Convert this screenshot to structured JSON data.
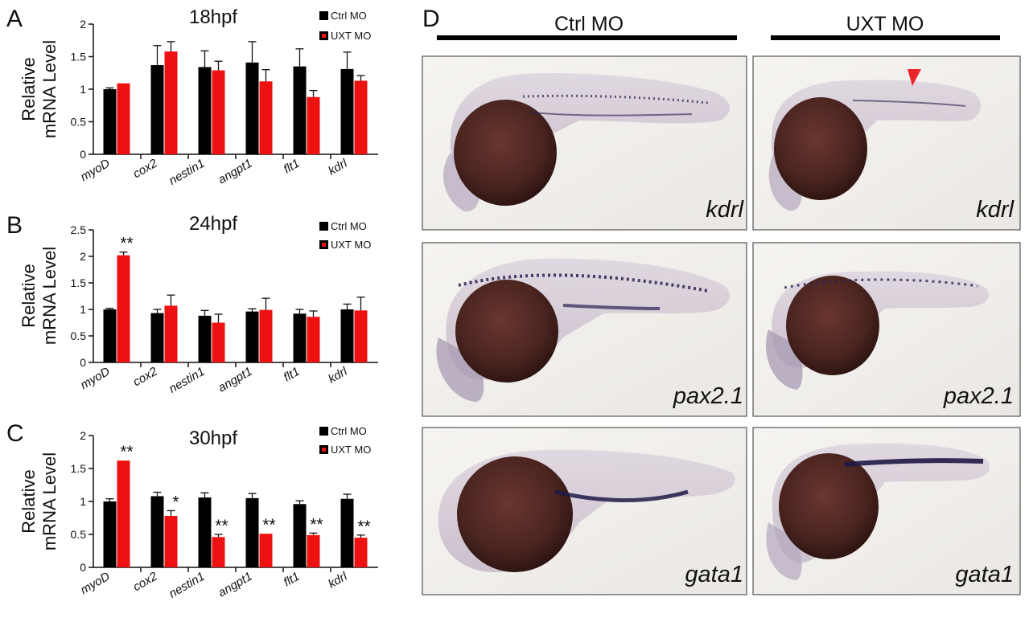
{
  "chart_data": [
    {
      "type": "bar",
      "panel": "A",
      "title": "18hpf",
      "ylabel_line1": "Relative",
      "ylabel_line2": "mRNA Level",
      "categories": [
        "myoD",
        "cox2",
        "nestin1",
        "angpt1",
        "flt1",
        "kdrl"
      ],
      "yticks": [
        "0",
        "0.5",
        "1",
        "1.5",
        "2"
      ],
      "ylim": [
        0,
        2
      ],
      "series": [
        {
          "name": "Ctrl MO",
          "color": "#000000",
          "values": [
            1.0,
            1.37,
            1.34,
            1.41,
            1.35,
            1.31
          ],
          "errors": [
            0.02,
            0.3,
            0.25,
            0.32,
            0.27,
            0.26
          ]
        },
        {
          "name": "UXT MO",
          "color": "#ee1111",
          "values": [
            1.09,
            1.58,
            1.29,
            1.12,
            0.88,
            1.13
          ],
          "errors": [
            0.0,
            0.15,
            0.14,
            0.18,
            0.1,
            0.08
          ]
        }
      ],
      "significance": []
    },
    {
      "type": "bar",
      "panel": "B",
      "title": "24hpf",
      "ylabel_line1": "Relative",
      "ylabel_line2": "mRNA Level",
      "categories": [
        "myoD",
        "cox2",
        "nestin1",
        "angpt1",
        "flt1",
        "kdrl"
      ],
      "yticks": [
        "0",
        "0.5",
        "1",
        "1.5",
        "2",
        "2.5"
      ],
      "ylim": [
        0,
        2.5
      ],
      "series": [
        {
          "name": "Ctrl MO",
          "color": "#000000",
          "values": [
            1.0,
            0.93,
            0.88,
            0.96,
            0.92,
            1.0
          ],
          "errors": [
            0.02,
            0.07,
            0.1,
            0.05,
            0.08,
            0.1
          ]
        },
        {
          "name": "UXT MO",
          "color": "#ee1111",
          "values": [
            2.02,
            1.07,
            0.75,
            0.99,
            0.86,
            0.98
          ],
          "errors": [
            0.06,
            0.2,
            0.16,
            0.22,
            0.11,
            0.25
          ]
        }
      ],
      "significance": [
        {
          "category": 0,
          "series": 1,
          "text": "**"
        }
      ]
    },
    {
      "type": "bar",
      "panel": "C",
      "title": "30hpf",
      "ylabel_line1": "Relative",
      "ylabel_line2": "mRNA Level",
      "categories": [
        "myoD",
        "cox2",
        "nestin1",
        "angpt1",
        "flt1",
        "kdrl"
      ],
      "yticks": [
        "0",
        "0.5",
        "1",
        "1.5",
        "2"
      ],
      "ylim": [
        0,
        2
      ],
      "series": [
        {
          "name": "Ctrl MO",
          "color": "#000000",
          "values": [
            1.0,
            1.08,
            1.06,
            1.05,
            0.96,
            1.04
          ],
          "errors": [
            0.04,
            0.06,
            0.07,
            0.07,
            0.05,
            0.07
          ]
        },
        {
          "name": "UXT MO",
          "color": "#ee1111",
          "values": [
            1.62,
            0.78,
            0.46,
            0.51,
            0.49,
            0.45
          ],
          "errors": [
            0.0,
            0.08,
            0.04,
            0.0,
            0.03,
            0.04
          ]
        }
      ],
      "significance": [
        {
          "category": 0,
          "series": 1,
          "text": "**"
        },
        {
          "category": 1,
          "series": 1,
          "text": "*"
        },
        {
          "category": 2,
          "series": 1,
          "text": "**"
        },
        {
          "category": 3,
          "series": 1,
          "text": "**"
        },
        {
          "category": 4,
          "series": 1,
          "text": "**"
        },
        {
          "category": 5,
          "series": 1,
          "text": "**"
        }
      ]
    }
  ],
  "panel_d": {
    "letter": "D",
    "groups": [
      "Ctrl MO",
      "UXT MO"
    ],
    "rows": [
      {
        "gene": "kdrl",
        "arrow_in_uxt": true
      },
      {
        "gene": "pax2.1",
        "arrow_in_uxt": false
      },
      {
        "gene": "gata1",
        "arrow_in_uxt": false
      }
    ]
  },
  "colors": {
    "ctrl": "#000000",
    "uxt": "#ee1111",
    "arrow": "#e8262a",
    "panel_bg": "#f2f0ec",
    "yolk": "#4a2420",
    "stain": "#2a2150",
    "embryo": "#cdc3cf"
  }
}
